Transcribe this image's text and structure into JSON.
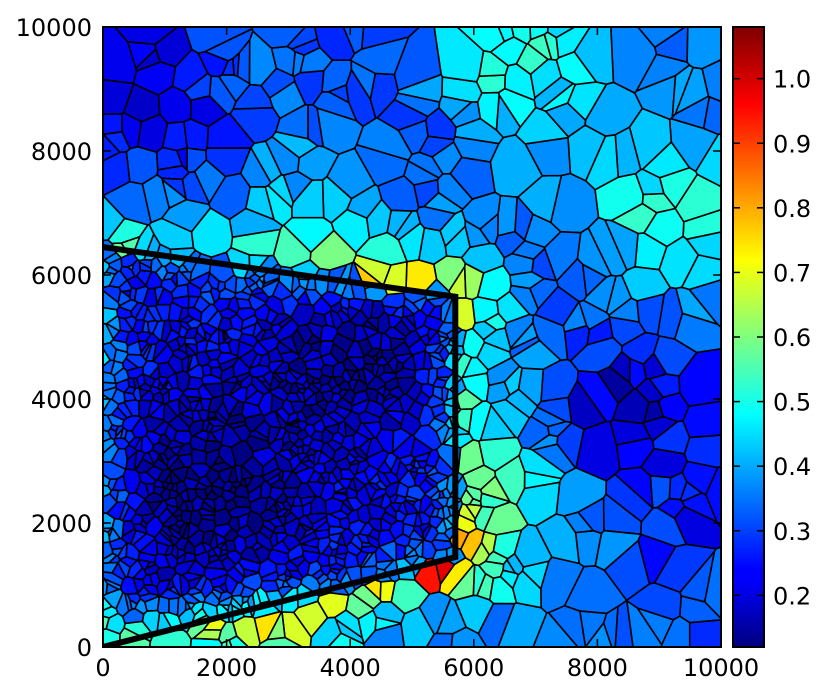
{
  "chart_data": {
    "type": "heatmap",
    "title": "",
    "xlabel": "",
    "ylabel": "",
    "xlim": [
      0,
      10000
    ],
    "ylim": [
      0,
      10000
    ],
    "x_ticks": [
      "0",
      "2000",
      "4000",
      "6000",
      "8000",
      "10000"
    ],
    "y_ticks": [
      "0",
      "2000",
      "4000",
      "6000",
      "8000",
      "10000"
    ],
    "colormap": "jet",
    "colorbar": {
      "min": 0.12,
      "max": 1.08,
      "ticks": [
        "0.2",
        "0.3",
        "0.4",
        "0.5",
        "0.6",
        "0.7",
        "0.8",
        "0.9",
        "1.0"
      ]
    },
    "overlay_polygon": {
      "color": "#000000",
      "points": [
        [
          0,
          0
        ],
        [
          5700,
          1450
        ],
        [
          5700,
          5650
        ],
        [
          0,
          6450
        ]
      ]
    },
    "description_free_fields": {
      "cell_edge_color": "#000000",
      "background_level": 0.33
    }
  }
}
